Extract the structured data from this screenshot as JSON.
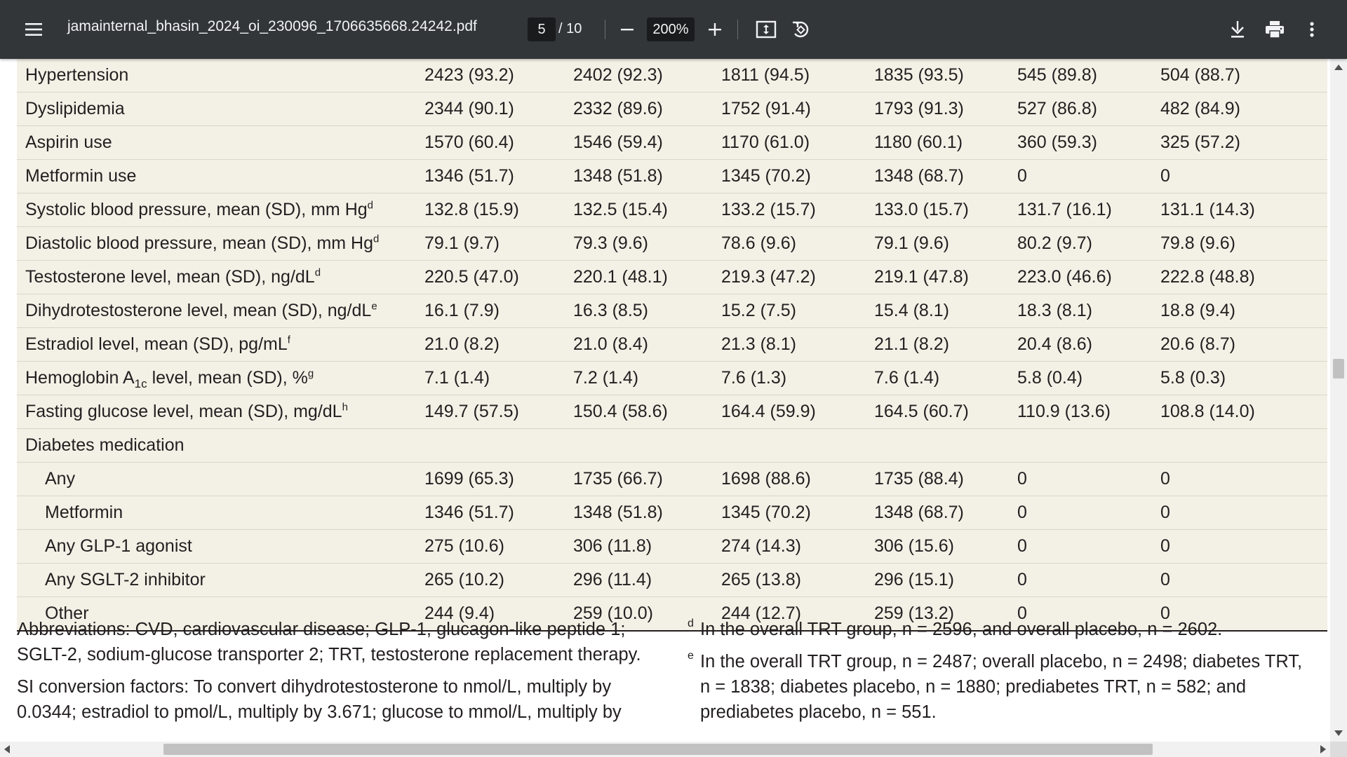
{
  "toolbar": {
    "filename": "jamainternal_bhasin_2024_oi_230096_1706635668.24242.pdf",
    "page_current": "5",
    "page_total": "/ 10",
    "zoom": "200%",
    "icons": [
      "menu-icon",
      "minus-icon",
      "plus-icon",
      "fit-page-icon",
      "rotate-icon",
      "download-icon",
      "print-icon",
      "more-vert-icon"
    ]
  },
  "table": {
    "rows": [
      {
        "label": "Hypertension",
        "sup": "",
        "values": [
          "2423 (93.2)",
          "2402 (92.3)",
          "1811 (94.5)",
          "1835 (93.5)",
          "545 (89.8)",
          "504 (88.7)"
        ]
      },
      {
        "label": "Dyslipidemia",
        "sup": "",
        "values": [
          "2344 (90.1)",
          "2332 (89.6)",
          "1752 (91.4)",
          "1793 (91.3)",
          "527 (86.8)",
          "482 (84.9)"
        ]
      },
      {
        "label": "Aspirin use",
        "sup": "",
        "values": [
          "1570 (60.4)",
          "1546 (59.4)",
          "1170 (61.0)",
          "1180 (60.1)",
          "360 (59.3)",
          "325 (57.2)"
        ]
      },
      {
        "label": "Metformin use",
        "sup": "",
        "values": [
          "1346 (51.7)",
          "1348 (51.8)",
          "1345 (70.2)",
          "1348 (68.7)",
          "0",
          "0"
        ]
      },
      {
        "label": "Systolic blood pressure, mean (SD), mm Hg",
        "sup": "d",
        "values": [
          "132.8 (15.9)",
          "132.5 (15.4)",
          "133.2 (15.7)",
          "133.0 (15.7)",
          "131.7 (16.1)",
          "131.1 (14.3)"
        ]
      },
      {
        "label": "Diastolic blood pressure, mean (SD), mm Hg",
        "sup": "d",
        "values": [
          "79.1 (9.7)",
          "79.3 (9.6)",
          "78.6 (9.6)",
          "79.1 (9.6)",
          "80.2 (9.7)",
          "79.8 (9.6)"
        ]
      },
      {
        "label": "Testosterone level, mean (SD), ng/dL",
        "sup": "d",
        "values": [
          "220.5 (47.0)",
          "220.1 (48.1)",
          "219.3 (47.2)",
          "219.1 (47.8)",
          "223.0 (46.6)",
          "222.8 (48.8)"
        ]
      },
      {
        "label": "Dihydrotestosterone level, mean (SD), ng/dL",
        "sup": "e",
        "values": [
          "16.1 (7.9)",
          "16.3 (8.5)",
          "15.2 (7.5)",
          "15.4 (8.1)",
          "18.3 (8.1)",
          "18.8 (9.4)"
        ]
      },
      {
        "label": "Estradiol level, mean (SD), pg/mL",
        "sup": "f",
        "values": [
          "21.0 (8.2)",
          "21.0 (8.4)",
          "21.3 (8.1)",
          "21.1 (8.2)",
          "20.4 (8.6)",
          "20.6 (8.7)"
        ]
      },
      {
        "label_pre": "Hemoglobin A",
        "label_sub": "1c",
        "label_post": " level, mean (SD), %",
        "sup": "g",
        "values": [
          "7.1 (1.4)",
          "7.2 (1.4)",
          "7.6 (1.3)",
          "7.6 (1.4)",
          "5.8 (0.4)",
          "5.8 (0.3)"
        ]
      },
      {
        "label": "Fasting glucose level, mean (SD), mg/dL",
        "sup": "h",
        "values": [
          "149.7 (57.5)",
          "150.4 (58.6)",
          "164.4 (59.9)",
          "164.5 (60.7)",
          "110.9 (13.6)",
          "108.8 (14.0)"
        ]
      },
      {
        "label": "Diabetes medication",
        "sup": "",
        "values": [
          "",
          "",
          "",
          "",
          "",
          ""
        ]
      },
      {
        "label": "Any",
        "sup": "",
        "values": [
          "1699 (65.3)",
          "1735 (66.7)",
          "1698 (88.6)",
          "1735 (88.4)",
          "0",
          "0"
        ]
      },
      {
        "label": "Metformin",
        "sup": "",
        "values": [
          "1346 (51.7)",
          "1348 (51.8)",
          "1345 (70.2)",
          "1348 (68.7)",
          "0",
          "0"
        ]
      },
      {
        "label": "Any GLP-1 agonist",
        "sup": "",
        "values": [
          "275 (10.6)",
          "306 (11.8)",
          "274 (14.3)",
          "306 (15.6)",
          "0",
          "0"
        ]
      },
      {
        "label": "Any SGLT-2 inhibitor",
        "sup": "",
        "values": [
          "265 (10.2)",
          "296 (11.4)",
          "265 (13.8)",
          "296 (15.1)",
          "0",
          "0"
        ]
      },
      {
        "label": "Other",
        "sup": "",
        "values": [
          "244 (9.4)",
          "259 (10.0)",
          "244 (12.7)",
          "259 (13.2)",
          "0",
          "0"
        ]
      }
    ]
  },
  "footnotes": {
    "abbrev_1": "Abbreviations: CVD, cardiovascular disease; GLP-1, glucagon-like peptide 1;",
    "abbrev_2": "SGLT-2, sodium-glucose transporter 2; TRT, testosterone replacement therapy.",
    "si_1": "SI conversion factors: To convert dihydrotestosterone to nmol/L, multiply by",
    "si_2": "0.0344; estradiol to pmol/L, multiply by 3.671; glucose to mmol/L, multiply by",
    "note_d_marker": "d",
    "note_d": "In the overall TRT group, n = 2596, and overall placebo, n = 2602.",
    "note_e_marker": "e",
    "note_e_1": "In the overall TRT group, n = 2487; overall placebo, n = 2498; diabetes TRT,",
    "note_e_2": "n = 1838; diabetes placebo, n = 1880; prediabetes TRT, n = 582; and",
    "note_e_3": "prediabetes placebo, n = 551."
  }
}
